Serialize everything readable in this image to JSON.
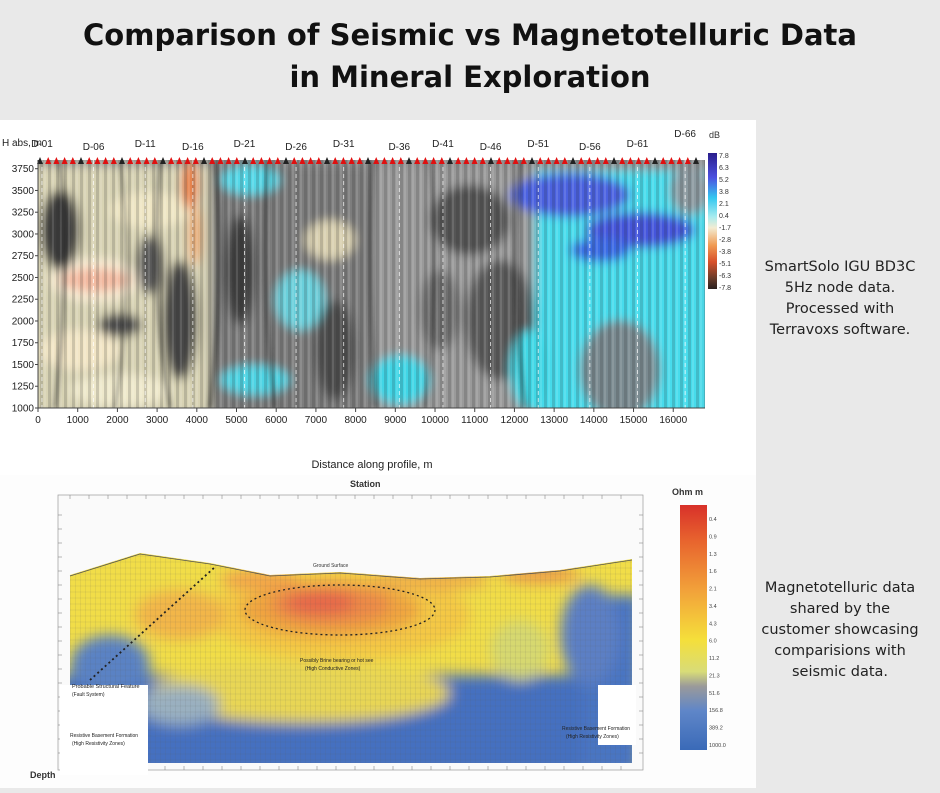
{
  "title": {
    "line1": "Comparison of Seismic vs Magnetotelluric Data",
    "line2": "in Mineral Exploration"
  },
  "captions": {
    "seismic": [
      "SmartSolo IGU BD3C",
      "5Hz node data.",
      "Processed with",
      "Terravoxs software."
    ],
    "mt": [
      "Magnetotelluric data",
      "shared by the",
      "customer showcasing",
      "comparisions with",
      "seismic data."
    ]
  },
  "colors": {
    "background": "#e9e9e9",
    "cyan": "#3fd8e6",
    "blue": "#3a4fd0",
    "cream": "#f6efc8",
    "orange": "#f08a3c",
    "mt_red": "#e2462e",
    "mt_yellow": "#f4d93a",
    "mt_blue": "#3f6fc0"
  },
  "chart_data": [
    {
      "type": "heatmap",
      "ylabel": "H abs, m",
      "xlabel": "Distance along profile, m",
      "x_ticks": [
        0,
        1000,
        2000,
        3000,
        4000,
        5000,
        6000,
        7000,
        8000,
        9000,
        10000,
        11000,
        12000,
        13000,
        14000,
        15000,
        16000
      ],
      "y_ticks": [
        1000,
        1250,
        1500,
        1750,
        2000,
        2250,
        2500,
        2750,
        3000,
        3250,
        3500,
        3750
      ],
      "xlim": [
        0,
        16800
      ],
      "ylim": [
        1000,
        3850
      ],
      "stations": [
        {
          "label": "D-01",
          "x": 100
        },
        {
          "label": "D-06",
          "x": 1400
        },
        {
          "label": "D-11",
          "x": 2700
        },
        {
          "label": "D-16",
          "x": 3900
        },
        {
          "label": "D-21",
          "x": 5200
        },
        {
          "label": "D-26",
          "x": 6500
        },
        {
          "label": "D-31",
          "x": 7700
        },
        {
          "label": "D-36",
          "x": 9100
        },
        {
          "label": "D-41",
          "x": 10200
        },
        {
          "label": "D-46",
          "x": 11400
        },
        {
          "label": "D-51",
          "x": 12600
        },
        {
          "label": "D-56",
          "x": 13900
        },
        {
          "label": "D-61",
          "x": 15100
        },
        {
          "label": "D-66",
          "x": 16300
        }
      ],
      "colorbar": {
        "unit": "dB",
        "labels": [
          "7.8",
          "6.3",
          "5.2",
          "3.8",
          "2.1",
          "0.4",
          "-1.7",
          "-2.8",
          "-3.8",
          "-5.1",
          "-6.3",
          "-7.8"
        ]
      }
    },
    {
      "type": "heatmap",
      "xlabel": "Station",
      "ylabel": "Depth",
      "colorbar": {
        "unit": "Ohm m",
        "labels": [
          "0.4",
          "0.9",
          "1.3",
          "1.6",
          "2.1",
          "3.4",
          "4.3",
          "6.0",
          "11.2",
          "21.3",
          "51.6",
          "156.8",
          "389.2",
          "1000.0"
        ]
      },
      "annotations": {
        "ground_surface": "Ground Surface",
        "structural_feature": "Probable Structural Feature",
        "fault_system": "(Fault System)",
        "basement_left": "Resistive Basement Formation",
        "basement_left_sub": "(High Resistivity Zones)",
        "conductive": "Possibly Brine bearing or hot see",
        "conductive_sub": "(High Conductive Zones)",
        "basement_right": "Resistive Basement Formation",
        "basement_right_sub": "(High Resistivity Zones)"
      }
    }
  ]
}
